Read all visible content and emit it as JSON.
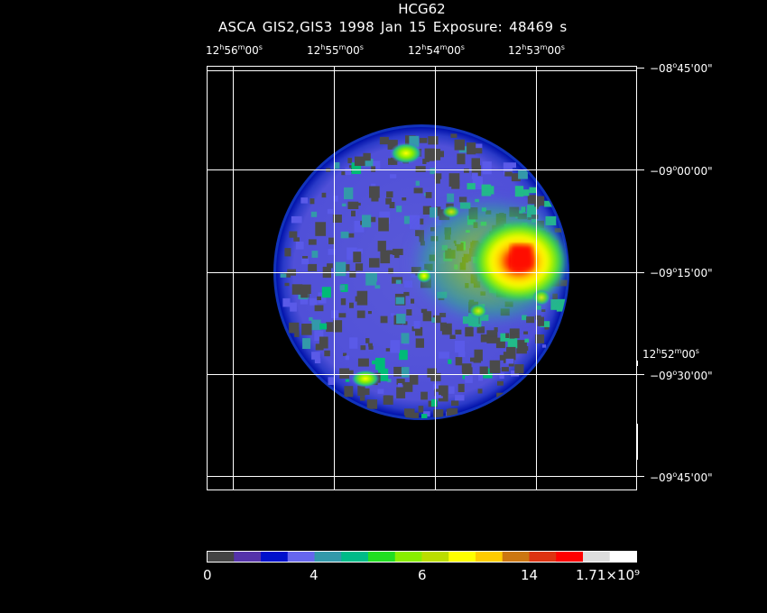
{
  "header": {
    "title": "HCG62",
    "subtitle": "ASCA GIS2,GIS3   1998 Jan 15    Exposure: 48469 s"
  },
  "axes": {
    "ra_ticks": [
      "12h56m00s",
      "12h55m00s",
      "12h54m00s",
      "12h53m00s"
    ],
    "ra_ticks_parts": [
      {
        "h": "12",
        "m": "56",
        "s": "00"
      },
      {
        "h": "12",
        "m": "55",
        "s": "00"
      },
      {
        "h": "12",
        "m": "54",
        "s": "00"
      },
      {
        "h": "12",
        "m": "53",
        "s": "00"
      }
    ],
    "ra_corner": {
      "h": "12",
      "m": "52",
      "s": "00"
    },
    "dec_ticks": [
      "−08°45'00\"",
      "−09°00'00\"",
      "−09°15'00\"",
      "−09°30'00\"",
      "−09°45'00\""
    ],
    "dec_ticks_parts": [
      {
        "d": "−08",
        "m": "45"
      },
      {
        "d": "−09",
        "m": "00"
      },
      {
        "d": "−09",
        "m": "15"
      },
      {
        "d": "−09",
        "m": "30"
      },
      {
        "d": "−09",
        "m": "45"
      }
    ]
  },
  "colorbar": {
    "labels": [
      "0",
      "4",
      "6",
      "14",
      "1.71×10⁹"
    ],
    "colors": [
      "#444444",
      "#5533aa",
      "#0011cc",
      "#6666ee",
      "#3399aa",
      "#00bb88",
      "#22dd22",
      "#88ee00",
      "#bbdd00",
      "#ffff00",
      "#ffcc00",
      "#cc7711",
      "#dd3311",
      "#ff0000",
      "#dddddd",
      "#ffffff"
    ]
  },
  "image": {
    "description_colors": {
      "background": "#000000",
      "low": "#444444",
      "mid": "#5555ee",
      "high": "#ff0000"
    }
  }
}
